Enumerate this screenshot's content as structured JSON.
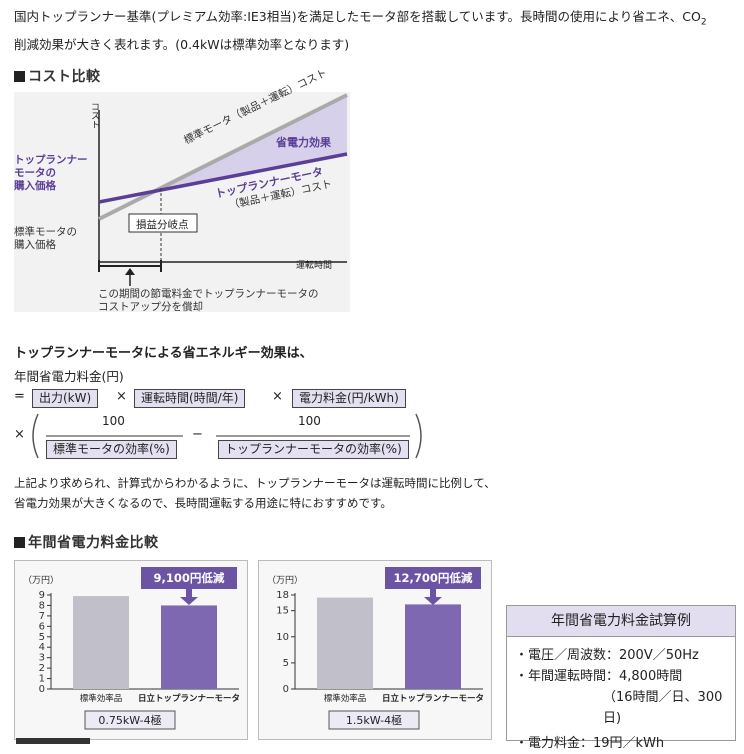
{
  "intro": {
    "line1": "国内トップランナー基準(プレミアム効率:IE3相当)を満足したモータ部を搭載しています。長時間の使用により省エネ、CO",
    "line1_sub": "2",
    "line2": "削減効果が大きく表れます。(0.4kWは標準効率となります)"
  },
  "cost_section": {
    "heading": "コスト比較",
    "y_axis": "コスト",
    "x_axis": "運転時間",
    "standard_line_label": "標準モータ（製品＋運転）コスト",
    "saving_label": "省電力効果",
    "toprunner_label_1": "トップランナーモータ",
    "toprunner_label_2": "（製品＋運転）コスト",
    "toprunner_price_1": "トップランナー",
    "toprunner_price_2": "モータの",
    "toprunner_price_3": "購入価格",
    "standard_price_1": "標準モータの",
    "standard_price_2": "購入価格",
    "breakeven": "損益分岐点",
    "note_1": "この期間の節電料金でトップランナーモータの",
    "note_2": "コストアップ分を償却"
  },
  "formula": {
    "heading": "トップランナーモータによる省エネルギー効果は、",
    "label": "年間省電力料金(円)",
    "eq": "=",
    "times": "×",
    "minus": "−",
    "term_output": "出力(kW)",
    "term_hours": "運転時間(時間/年)",
    "term_rate": "電力料金(円/kWh)",
    "numerator": "100",
    "den_standard": "標準モータの効率(%)",
    "den_toprunner": "トップランナーモータの効率(%)",
    "note_1": "上記より求められ、計算式からわかるように、トップランナーモータは運転時間に比例して、",
    "note_2": "省電力効果が大きくなるので、長時間運転する用途に特におすすめです。"
  },
  "annual_section": {
    "heading": "年間省電力料金比較"
  },
  "chart_data": [
    {
      "type": "bar",
      "unit": "（万円）",
      "categories": [
        "標準効率品",
        "日立トップランナーモータ"
      ],
      "values": [
        8.9,
        8.0
      ],
      "ylim": [
        0,
        9
      ],
      "ticks": [
        "9",
        "8",
        "7",
        "6",
        "5",
        "4",
        "3",
        "2",
        "1",
        "0"
      ],
      "callout": "9,100円低減",
      "size": "0.75kW-4極",
      "colors": [
        "#c1bfca",
        "#7e68b1"
      ]
    },
    {
      "type": "bar",
      "unit": "（万円）",
      "categories": [
        "標準効率品",
        "日立トップランナーモータ"
      ],
      "values": [
        17.5,
        16.2
      ],
      "ylim": [
        0,
        18
      ],
      "ticks": [
        "18",
        "15",
        "10",
        "5",
        "0"
      ],
      "callout": "12,700円低減",
      "size": "1.5kW-4極",
      "colors": [
        "#c1bfca",
        "#7e68b1"
      ]
    }
  ],
  "calc_example": {
    "title": "年間省電力料金試算例",
    "row1": "・電圧／周波数：200V／50Hz",
    "row2": "・年間運転時間：4,800時間",
    "row3": "（16時間／日、300日)",
    "row4": "・電力料金：19円／kWh"
  }
}
